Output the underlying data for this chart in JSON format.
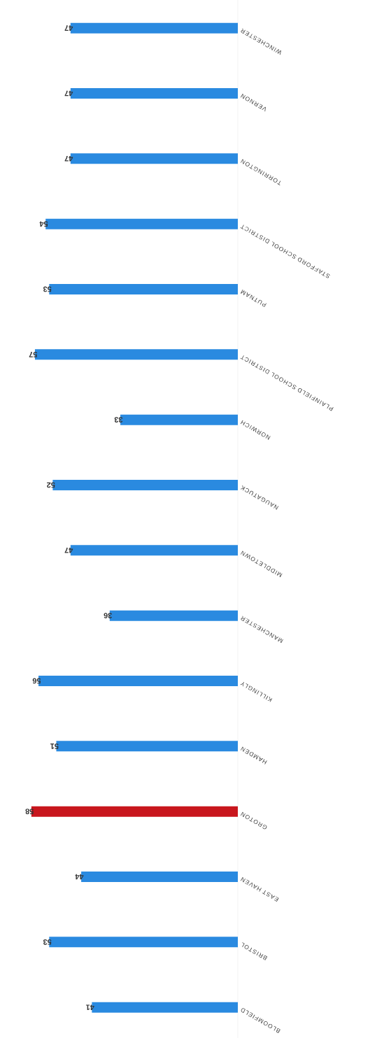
{
  "chart_data": {
    "type": "bar",
    "orientation": "horizontal",
    "categories": [
      "WINCHESTER",
      "VERNON",
      "TORRINGTON",
      "STAFFORD SCHOOL DISTRICT",
      "PUTNAM",
      "PLAINFIELD SCHOOL DISTRICT",
      "NORWICH",
      "NAUGATUCK",
      "MIDDLETOWN",
      "MANCHESTER",
      "KILLINGLY",
      "HAMDEN",
      "GROTON",
      "EAST HAVEN",
      "BRISTOL",
      "BLOOMFIELD"
    ],
    "values": [
      47,
      47,
      47,
      54,
      53,
      57,
      33,
      52,
      47,
      36,
      56,
      51,
      58,
      44,
      53,
      41
    ],
    "colors": [
      "#2a8ae0",
      "#2a8ae0",
      "#2a8ae0",
      "#2a8ae0",
      "#2a8ae0",
      "#2a8ae0",
      "#2a8ae0",
      "#2a8ae0",
      "#2a8ae0",
      "#2a8ae0",
      "#2a8ae0",
      "#2a8ae0",
      "#c8161d",
      "#2a8ae0",
      "#2a8ae0",
      "#2a8ae0"
    ],
    "data_labels": true
  }
}
